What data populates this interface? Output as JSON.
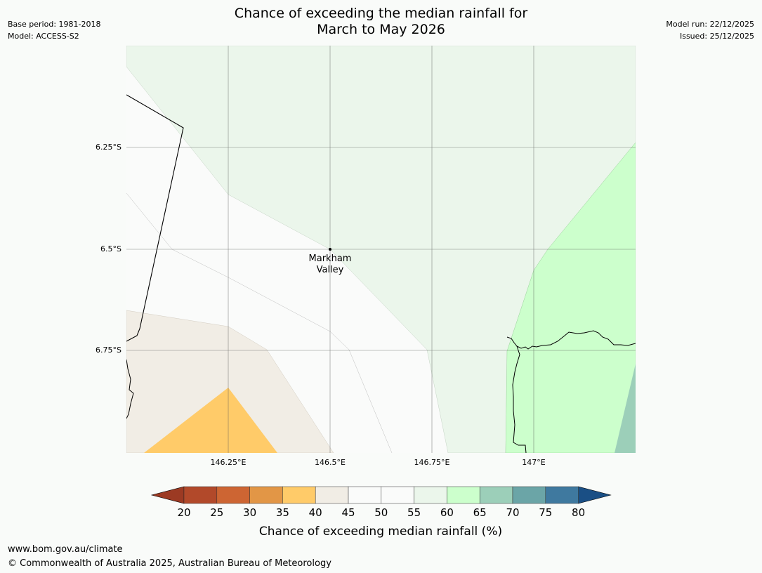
{
  "header": {
    "title_line1": "Chance of exceeding the median rainfall for",
    "title_line2": "March to May 2026",
    "base_period": "Base period: 1981-2018",
    "model": "Model: ACCESS-S2",
    "model_run": "Model run: 22/12/2025",
    "issued": "Issued: 25/12/2025"
  },
  "map": {
    "lon_labels": [
      "146.25°E",
      "146.5°E",
      "146.75°E",
      "147°E"
    ],
    "lat_labels": [
      "6.25°S",
      "6.5°S",
      "6.75°S"
    ],
    "place": {
      "name_line1": "Markham",
      "name_line2": "Valley"
    }
  },
  "legend": {
    "title": "Chance of exceeding median rainfall (%)",
    "ticks": [
      "20",
      "25",
      "30",
      "35",
      "40",
      "45",
      "50",
      "55",
      "60",
      "65",
      "70",
      "75",
      "80"
    ],
    "colors": [
      "#b2492a",
      "#cd6533",
      "#e29646",
      "#ffcb69",
      "#f1ede5",
      "#fafbfa",
      "#fafbfa",
      "#ebf6eb",
      "#ccffcc",
      "#9ccfb9",
      "#6ba5a7",
      "#3f799f"
    ],
    "under_color": "#9c3a23",
    "over_color": "#1a4f85"
  },
  "footer": {
    "website": "www.bom.gov.au/climate",
    "copyright": "© Commonwealth of Australia 2025, Australian Bureau of Meteorology"
  }
}
